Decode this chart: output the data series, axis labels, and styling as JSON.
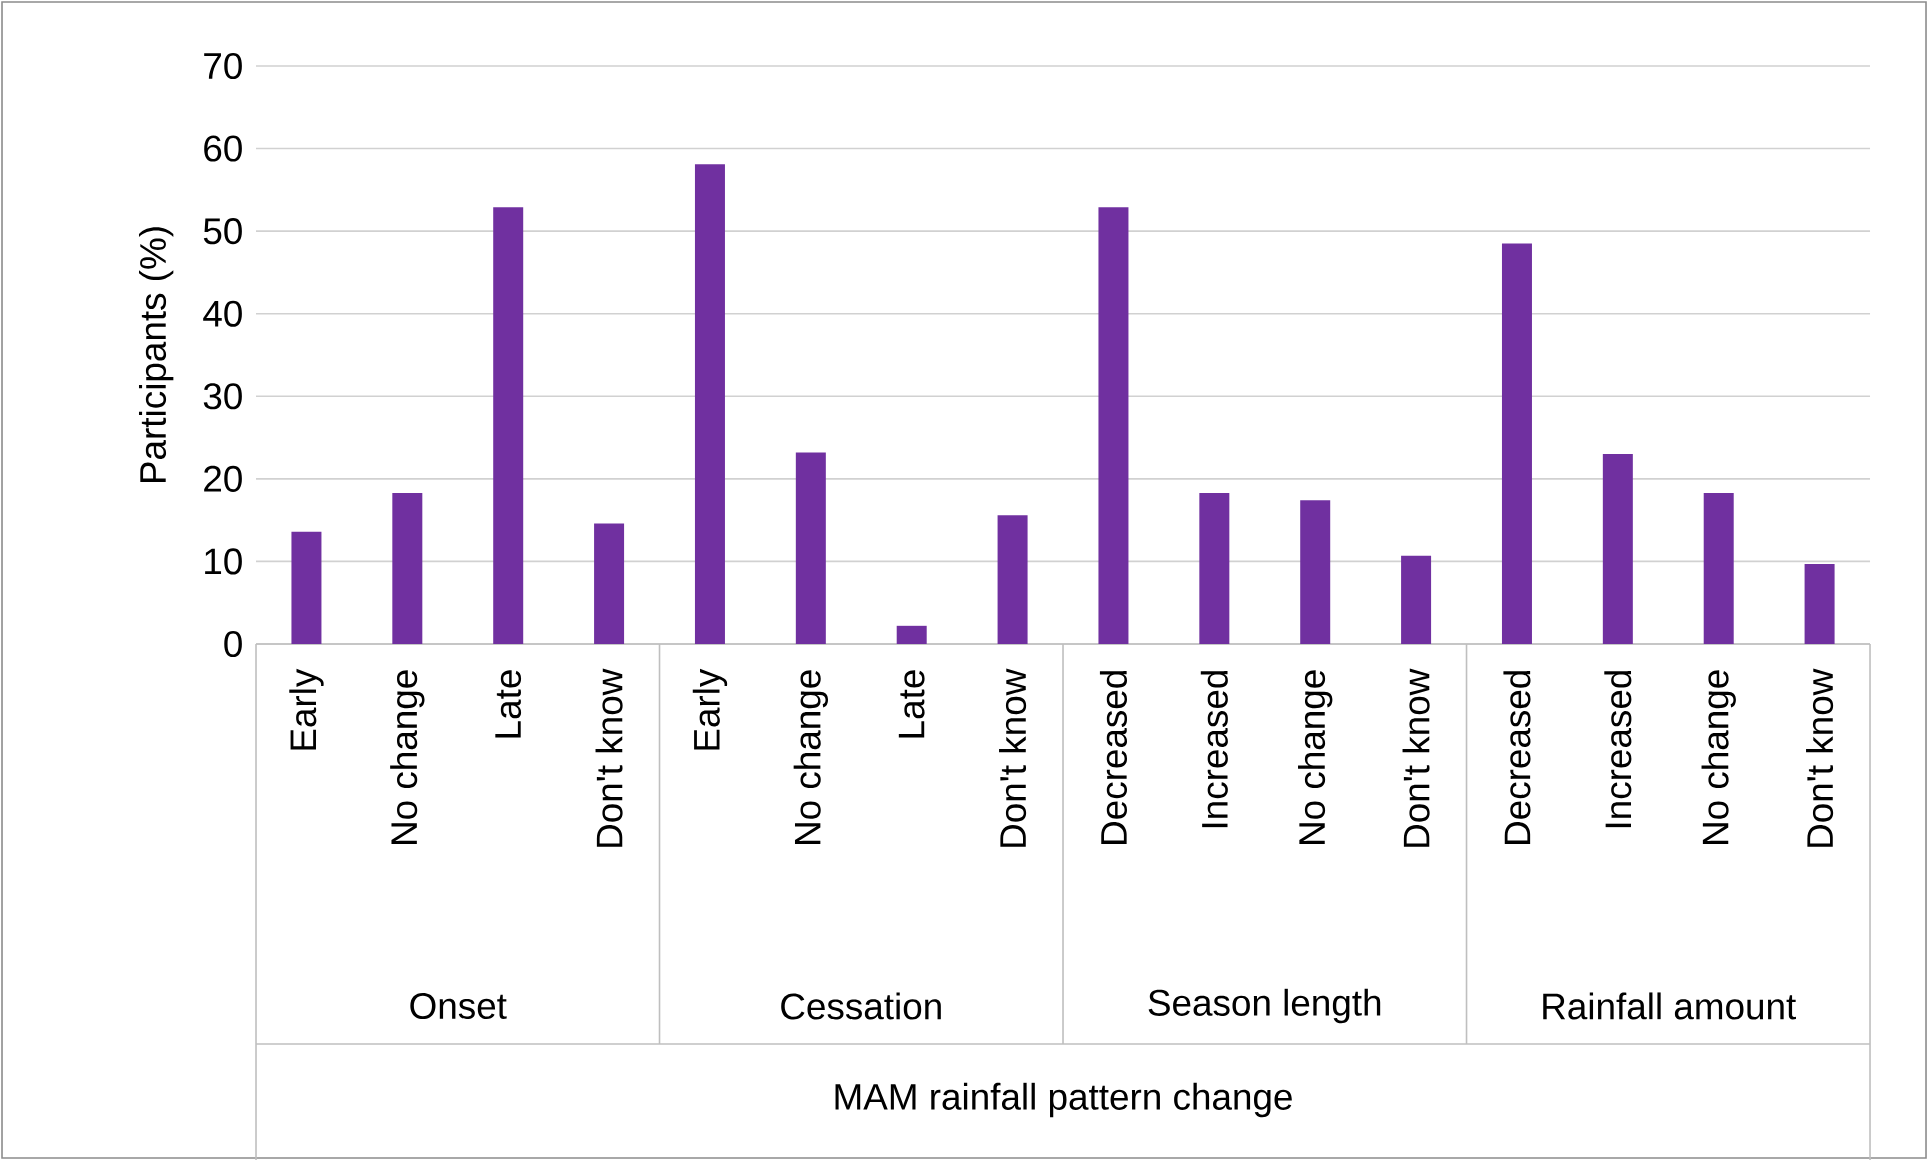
{
  "chart_data": {
    "type": "bar",
    "categories": [
      "Early",
      "No change",
      "Late",
      "Don't know",
      "Early",
      "No change",
      "Late",
      "Don't know",
      "Decreased",
      "Increased",
      "No change",
      "Don't know",
      "Decreased",
      "Increased",
      "No change",
      "Don't know"
    ],
    "values": [
      13.6,
      18.3,
      52.9,
      14.6,
      58.1,
      23.2,
      2.2,
      15.6,
      52.9,
      18.3,
      17.4,
      10.7,
      48.5,
      23.0,
      18.3,
      9.7
    ],
    "color": "#7030a0",
    "ylabel": "Participants (%)",
    "annotations": [
      "Onset",
      "Cessation",
      "Season length",
      "Rainfall amount",
      "MAM rainfall pattern change"
    ],
    "ylim": [
      0,
      70
    ],
    "yticks": [
      0,
      10,
      20,
      30,
      40,
      50,
      60,
      70
    ],
    "grid": "y"
  }
}
